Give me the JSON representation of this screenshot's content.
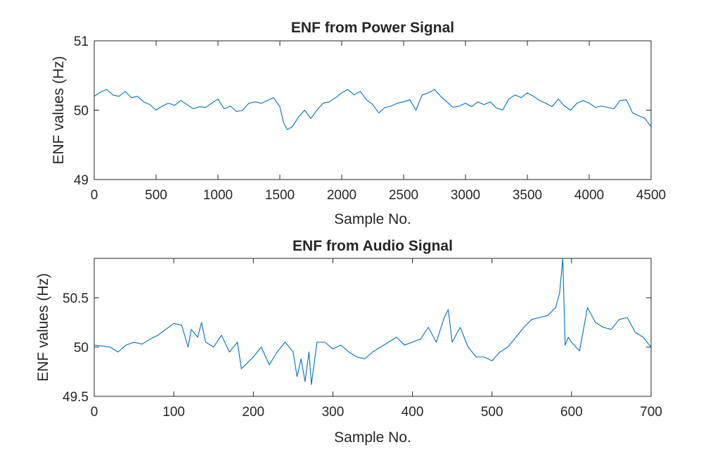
{
  "colors": {
    "series": "#0072BD",
    "axes": "#262626",
    "background": "#ffffff"
  },
  "chart_data": [
    {
      "type": "line",
      "title": "ENF from Power Signal",
      "xlabel": "Sample No.",
      "ylabel": "ENF values (Hz)",
      "xlim": [
        0,
        4500
      ],
      "ylim": [
        49,
        51
      ],
      "xticks": [
        "0",
        "500",
        "1000",
        "1500",
        "2000",
        "2500",
        "3000",
        "3500",
        "4000",
        "4500"
      ],
      "yticks": [
        "49",
        "50",
        "51"
      ],
      "grid": false,
      "series": [
        {
          "x": [
            0,
            50,
            100,
            150,
            200,
            250,
            300,
            350,
            400,
            450,
            500,
            550,
            600,
            650,
            700,
            750,
            800,
            850,
            900,
            950,
            1000,
            1050,
            1100,
            1150,
            1200,
            1250,
            1300,
            1350,
            1400,
            1450,
            1500,
            1530,
            1560,
            1600,
            1650,
            1700,
            1750,
            1800,
            1850,
            1900,
            1950,
            2000,
            2050,
            2100,
            2150,
            2200,
            2250,
            2300,
            2350,
            2400,
            2450,
            2500,
            2550,
            2600,
            2650,
            2700,
            2750,
            2800,
            2850,
            2900,
            2950,
            3000,
            3050,
            3100,
            3150,
            3200,
            3250,
            3300,
            3350,
            3400,
            3450,
            3500,
            3550,
            3600,
            3650,
            3700,
            3750,
            3800,
            3850,
            3900,
            3950,
            4000,
            4050,
            4100,
            4150,
            4200,
            4250,
            4300,
            4350,
            4400,
            4450,
            4500
          ],
          "y": [
            50.2,
            50.26,
            50.3,
            50.22,
            50.2,
            50.27,
            50.18,
            50.2,
            50.12,
            50.08,
            50.0,
            50.06,
            50.1,
            50.07,
            50.14,
            50.08,
            50.02,
            50.05,
            50.04,
            50.1,
            50.16,
            50.02,
            50.06,
            49.98,
            50.0,
            50.1,
            50.12,
            50.1,
            50.14,
            50.18,
            50.05,
            49.82,
            49.72,
            49.76,
            49.9,
            50.0,
            49.88,
            50.0,
            50.1,
            50.12,
            50.18,
            50.25,
            50.3,
            50.22,
            50.27,
            50.15,
            50.08,
            49.96,
            50.04,
            50.06,
            50.1,
            50.12,
            50.15,
            50.0,
            50.22,
            50.25,
            50.3,
            50.2,
            50.12,
            50.04,
            50.06,
            50.1,
            50.05,
            50.12,
            50.08,
            50.12,
            50.03,
            50.0,
            50.16,
            50.22,
            50.18,
            50.25,
            50.2,
            50.14,
            50.1,
            50.05,
            50.16,
            50.06,
            50.0,
            50.1,
            50.14,
            50.1,
            50.04,
            50.06,
            50.04,
            50.02,
            50.14,
            50.15,
            49.96,
            49.92,
            49.88,
            49.76
          ]
        }
      ]
    },
    {
      "type": "line",
      "title": "ENF from Audio Signal",
      "xlabel": "Sample No.",
      "ylabel": "ENF values (Hz)",
      "xlim": [
        0,
        700
      ],
      "ylim": [
        49.5,
        50.9
      ],
      "xticks": [
        "0",
        "100",
        "200",
        "300",
        "400",
        "500",
        "600",
        "700"
      ],
      "yticks": [
        "49.5",
        "50",
        "50.5"
      ],
      "grid": false,
      "series": [
        {
          "x": [
            0,
            10,
            20,
            30,
            40,
            50,
            60,
            70,
            80,
            90,
            100,
            110,
            118,
            122,
            130,
            135,
            140,
            150,
            160,
            170,
            180,
            185,
            190,
            200,
            210,
            220,
            230,
            240,
            250,
            255,
            260,
            265,
            270,
            273,
            280,
            290,
            300,
            310,
            320,
            330,
            340,
            350,
            360,
            370,
            380,
            390,
            400,
            410,
            420,
            430,
            440,
            445,
            450,
            460,
            470,
            480,
            490,
            500,
            510,
            520,
            530,
            540,
            550,
            560,
            570,
            580,
            585,
            589,
            592,
            596,
            600,
            610,
            620,
            630,
            640,
            650,
            660,
            670,
            680,
            690,
            700
          ],
          "y": [
            50.02,
            50.01,
            50.0,
            49.95,
            50.02,
            50.05,
            50.03,
            50.08,
            50.12,
            50.18,
            50.24,
            50.22,
            50.0,
            50.18,
            50.1,
            50.25,
            50.05,
            50.0,
            50.12,
            49.95,
            50.05,
            49.78,
            49.82,
            49.9,
            50.0,
            49.82,
            49.95,
            50.05,
            49.95,
            49.7,
            49.88,
            49.65,
            49.95,
            49.62,
            50.05,
            50.05,
            49.98,
            50.02,
            49.95,
            49.9,
            49.88,
            49.95,
            50.0,
            50.05,
            50.1,
            50.02,
            50.05,
            50.08,
            50.2,
            50.05,
            50.3,
            50.38,
            50.05,
            50.2,
            50.0,
            49.9,
            49.9,
            49.86,
            49.95,
            50.0,
            50.1,
            50.2,
            50.28,
            50.3,
            50.32,
            50.4,
            50.55,
            50.9,
            50.02,
            50.1,
            50.05,
            49.96,
            50.4,
            50.25,
            50.2,
            50.18,
            50.28,
            50.3,
            50.15,
            50.1,
            50.0
          ]
        }
      ]
    }
  ]
}
